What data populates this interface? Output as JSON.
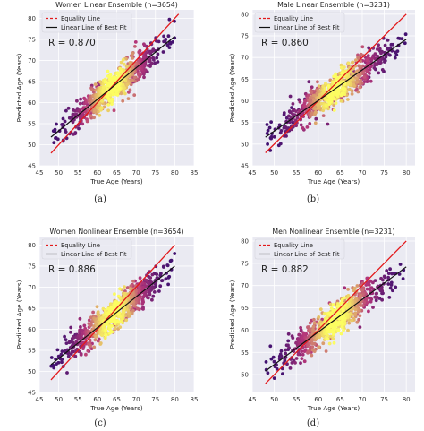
{
  "colors": {
    "panel_bg": "#eaeaf2",
    "grid": "#ffffff",
    "equality_line": "#e3191b",
    "fit_line": "#111111",
    "density_low": "#3b0f70",
    "density_mid": "#b5367a",
    "density_high": "#fcfd61"
  },
  "chart_data": [
    {
      "type": "scatter",
      "title": "Women Linear Ensemble (n=3654)",
      "xlabel": "True Age (Years)",
      "ylabel": "Predicted Age (Years)",
      "xlim": [
        45,
        85
      ],
      "ylim": [
        45,
        82
      ],
      "xticks": [
        "45",
        "50",
        "55",
        "60",
        "65",
        "70",
        "75",
        "80",
        "85"
      ],
      "yticks": [
        "45",
        "50",
        "55",
        "60",
        "65",
        "70",
        "75",
        "80"
      ],
      "r_label": "R = 0.870",
      "r": 0.87,
      "n": 3654,
      "x_range": [
        48,
        80
      ],
      "fit_line": {
        "x": [
          48,
          80
        ],
        "y": [
          51.8,
          75.7
        ]
      },
      "equality_line": {
        "x": [
          48,
          81
        ],
        "y": [
          48,
          81
        ]
      },
      "legend": [
        "Equality Line",
        "Linear Line of Best Fit"
      ],
      "legend_position": "top-left",
      "grid": true,
      "caption": "(a)"
    },
    {
      "type": "scatter",
      "title": "Male Linear Ensemble (n=3231)",
      "xlabel": "True Age (Years)",
      "ylabel": "Predicted Age (Years)",
      "xlim": [
        45,
        82
      ],
      "ylim": [
        45,
        81
      ],
      "xticks": [
        "45",
        "50",
        "55",
        "60",
        "65",
        "70",
        "75",
        "80"
      ],
      "yticks": [
        "45",
        "50",
        "55",
        "60",
        "65",
        "70",
        "75",
        "80"
      ],
      "r_label": "R = 0.860",
      "r": 0.86,
      "n": 3231,
      "x_range": [
        48,
        80
      ],
      "fit_line": {
        "x": [
          48,
          80
        ],
        "y": [
          51.6,
          74.2
        ]
      },
      "equality_line": {
        "x": [
          48,
          80
        ],
        "y": [
          48,
          80
        ]
      },
      "legend": [
        "Equality Line",
        "Linear Line of Best Fit"
      ],
      "legend_position": "top-left",
      "grid": true,
      "caption": "(b)"
    },
    {
      "type": "scatter",
      "title": "Women Nonlinear Ensemble (n=3654)",
      "xlabel": "True Age (Years)",
      "ylabel": "Predicted Age (Years)",
      "xlim": [
        45,
        85
      ],
      "ylim": [
        45,
        82
      ],
      "xticks": [
        "45",
        "50",
        "55",
        "60",
        "65",
        "70",
        "75",
        "80",
        "85"
      ],
      "yticks": [
        "45",
        "50",
        "55",
        "60",
        "65",
        "70",
        "75",
        "80"
      ],
      "r_label": "R = 0.886",
      "r": 0.886,
      "n": 3654,
      "x_range": [
        48,
        80
      ],
      "fit_line": {
        "x": [
          48,
          80
        ],
        "y": [
          51.6,
          75.0
        ]
      },
      "equality_line": {
        "x": [
          48,
          80
        ],
        "y": [
          48,
          80
        ]
      },
      "legend": [
        "Equality Line",
        "Linear Line of Best Fit"
      ],
      "legend_position": "top-left",
      "grid": true,
      "caption": "(c)"
    },
    {
      "type": "scatter",
      "title": "Men Nonlinear Ensemble (n=3231)",
      "xlabel": "True Age (Years)",
      "ylabel": "Predicted Age (Years)",
      "xlim": [
        45,
        82
      ],
      "ylim": [
        46,
        81
      ],
      "xticks": [
        "45",
        "50",
        "55",
        "60",
        "65",
        "70",
        "75",
        "80"
      ],
      "yticks": [
        "50",
        "55",
        "60",
        "65",
        "70",
        "75",
        "80"
      ],
      "r_label": "R = 0.882",
      "r": 0.882,
      "n": 3231,
      "x_range": [
        48,
        80
      ],
      "fit_line": {
        "x": [
          48,
          80
        ],
        "y": [
          50.8,
          74.2
        ]
      },
      "equality_line": {
        "x": [
          48,
          80
        ],
        "y": [
          48,
          80
        ]
      },
      "legend": [
        "Equality Line",
        "Linear Line of Best Fit"
      ],
      "legend_position": "top-left",
      "grid": true,
      "caption": "(d)"
    }
  ]
}
